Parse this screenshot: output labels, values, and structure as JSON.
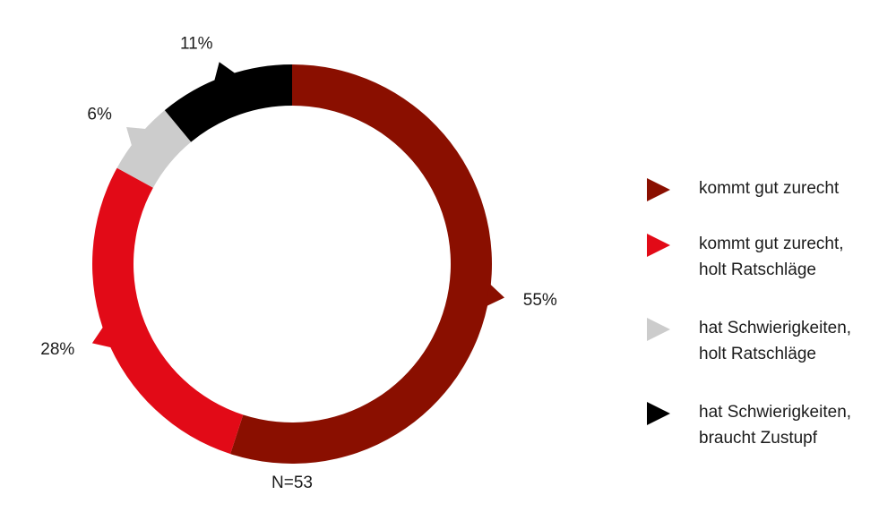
{
  "chart_data": {
    "type": "pie",
    "variant": "donut",
    "categories": [
      "kommt gut zurecht",
      "kommt gut zurecht,\nholt Ratschläge",
      "hat Schwierigkeiten,\nholt Ratschläge",
      "hat Schwierigkeiten,\nbraucht Zustupf"
    ],
    "values": [
      55,
      28,
      6,
      11
    ],
    "value_labels": [
      "55%",
      "28%",
      "6%",
      "11%"
    ],
    "colors": [
      "#8a0f00",
      "#e20a17",
      "#cccccc",
      "#000000"
    ],
    "unit": "%",
    "legend_position": "right",
    "start_angle": "12 o'clock",
    "direction": "clockwise",
    "annotation": "N=53"
  }
}
